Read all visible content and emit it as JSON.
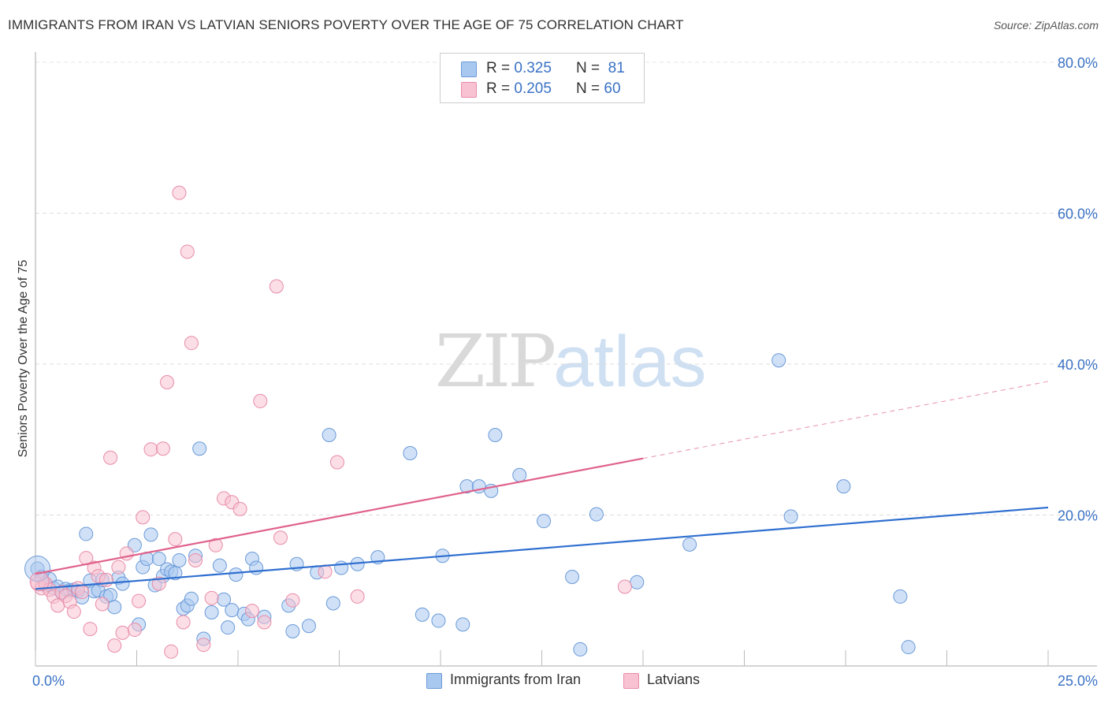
{
  "title": "IMMIGRANTS FROM IRAN VS LATVIAN SENIORS POVERTY OVER THE AGE OF 75 CORRELATION CHART",
  "source": "Source: ZipAtlas.com",
  "watermark": {
    "zip": "ZIP",
    "atlas": "atlas"
  },
  "legend": {
    "r_label": "R =",
    "n_label": "N =",
    "items": [
      {
        "r": "0.325",
        "n": "81",
        "color": "#a9c8f0",
        "border": "#6a9ad8"
      },
      {
        "r": "0.205",
        "n": "60",
        "color": "#f8c2d2",
        "border": "#e88ca8"
      }
    ]
  },
  "bottom_legend": [
    {
      "label": "Immigrants from Iran",
      "color": "#a9c8f0",
      "border": "#6a9ad8"
    },
    {
      "label": "Latvians",
      "color": "#f8c2d2",
      "border": "#e88ca8"
    }
  ],
  "chart_data": {
    "type": "scatter",
    "title": "IMMIGRANTS FROM IRAN VS LATVIAN SENIORS POVERTY OVER THE AGE OF 75 CORRELATION CHART",
    "xlabel": "",
    "ylabel": "Seniors Poverty Over the Age of 75",
    "xlim": [
      0,
      25
    ],
    "ylim": [
      0,
      80
    ],
    "x_tick_labels": [
      "0.0%",
      "25.0%"
    ],
    "y_ticks": [
      20,
      40,
      60,
      80
    ],
    "y_tick_labels": [
      "20.0%",
      "40.0%",
      "60.0%",
      "80.0%"
    ],
    "grid": true,
    "legend_position": "top-center",
    "series": [
      {
        "name": "Immigrants from Iran",
        "color": "#6a9ad8",
        "fill": "#a9c8f0",
        "trend": {
          "color": "#2f6fd0",
          "x": [
            0,
            25
          ],
          "y": [
            10.2,
            21.0
          ]
        },
        "points": [
          [
            0.05,
            12.9
          ],
          [
            0.15,
            11.8
          ],
          [
            0.25,
            10.7
          ],
          [
            0.35,
            11.5
          ],
          [
            0.45,
            10.3
          ],
          [
            0.55,
            10.5
          ],
          [
            0.65,
            9.7
          ],
          [
            0.75,
            10.2
          ],
          [
            0.85,
            10.0
          ],
          [
            0.95,
            10.1
          ],
          [
            1.05,
            9.9
          ],
          [
            1.15,
            9.1
          ],
          [
            1.25,
            17.5
          ],
          [
            1.35,
            11.3
          ],
          [
            1.45,
            9.9
          ],
          [
            1.55,
            10.0
          ],
          [
            1.65,
            11.4
          ],
          [
            1.75,
            9.2
          ],
          [
            1.85,
            9.4
          ],
          [
            1.95,
            7.8
          ],
          [
            2.05,
            11.7
          ],
          [
            2.15,
            10.9
          ],
          [
            2.45,
            16.0
          ],
          [
            2.55,
            5.5
          ],
          [
            2.65,
            13.1
          ],
          [
            2.75,
            14.2
          ],
          [
            2.85,
            17.4
          ],
          [
            2.95,
            10.7
          ],
          [
            3.05,
            14.2
          ],
          [
            3.15,
            11.9
          ],
          [
            3.25,
            12.8
          ],
          [
            3.35,
            12.5
          ],
          [
            3.45,
            12.3
          ],
          [
            3.55,
            14.0
          ],
          [
            3.65,
            7.6
          ],
          [
            3.75,
            8.0
          ],
          [
            3.85,
            8.9
          ],
          [
            3.95,
            14.6
          ],
          [
            4.05,
            28.8
          ],
          [
            4.15,
            3.6
          ],
          [
            4.35,
            7.1
          ],
          [
            4.55,
            13.3
          ],
          [
            4.65,
            8.8
          ],
          [
            4.75,
            5.1
          ],
          [
            4.85,
            7.4
          ],
          [
            4.95,
            12.1
          ],
          [
            5.15,
            6.9
          ],
          [
            5.25,
            6.2
          ],
          [
            5.35,
            14.2
          ],
          [
            5.45,
            13.0
          ],
          [
            5.65,
            6.5
          ],
          [
            6.25,
            8.0
          ],
          [
            6.35,
            4.6
          ],
          [
            6.45,
            13.5
          ],
          [
            6.75,
            5.3
          ],
          [
            6.95,
            12.4
          ],
          [
            7.25,
            30.6
          ],
          [
            7.35,
            8.3
          ],
          [
            7.55,
            13.0
          ],
          [
            7.95,
            13.5
          ],
          [
            8.45,
            14.4
          ],
          [
            9.25,
            28.2
          ],
          [
            9.55,
            6.8
          ],
          [
            9.95,
            6.0
          ],
          [
            10.05,
            14.6
          ],
          [
            10.55,
            5.5
          ],
          [
            10.65,
            23.8
          ],
          [
            10.95,
            23.8
          ],
          [
            11.25,
            23.2
          ],
          [
            11.35,
            30.6
          ],
          [
            11.95,
            25.3
          ],
          [
            12.55,
            19.2
          ],
          [
            13.25,
            11.8
          ],
          [
            13.45,
            2.2
          ],
          [
            13.85,
            20.1
          ],
          [
            14.85,
            11.1
          ],
          [
            16.15,
            16.1
          ],
          [
            18.35,
            40.5
          ],
          [
            18.65,
            19.8
          ],
          [
            19.95,
            23.8
          ],
          [
            21.35,
            9.2
          ],
          [
            21.55,
            2.5
          ]
        ]
      },
      {
        "name": "Latvians",
        "color": "#e88ca8",
        "fill": "#f8c2d2",
        "trend": {
          "color": "#e0628c",
          "x": [
            0,
            15
          ],
          "y": [
            12.2,
            27.5
          ]
        },
        "trend_extension": {
          "x": [
            15,
            25
          ],
          "y": [
            27.5,
            37.7
          ]
        },
        "points": [
          [
            0.05,
            10.9
          ],
          [
            0.15,
            10.3
          ],
          [
            0.25,
            10.9
          ],
          [
            0.35,
            10.1
          ],
          [
            0.45,
            9.2
          ],
          [
            0.55,
            8.0
          ],
          [
            0.65,
            9.8
          ],
          [
            0.75,
            9.3
          ],
          [
            0.85,
            8.5
          ],
          [
            0.95,
            7.2
          ],
          [
            1.05,
            10.3
          ],
          [
            1.15,
            9.8
          ],
          [
            1.25,
            14.3
          ],
          [
            1.35,
            4.9
          ],
          [
            1.45,
            13.0
          ],
          [
            1.55,
            11.9
          ],
          [
            1.65,
            8.2
          ],
          [
            1.75,
            11.4
          ],
          [
            1.85,
            27.6
          ],
          [
            1.95,
            2.7
          ],
          [
            2.05,
            13.1
          ],
          [
            2.15,
            4.4
          ],
          [
            2.25,
            14.9
          ],
          [
            2.45,
            4.8
          ],
          [
            2.55,
            8.6
          ],
          [
            2.65,
            19.7
          ],
          [
            2.85,
            28.7
          ],
          [
            3.05,
            10.9
          ],
          [
            3.15,
            28.8
          ],
          [
            3.25,
            37.6
          ],
          [
            3.35,
            1.9
          ],
          [
            3.45,
            16.8
          ],
          [
            3.55,
            62.7
          ],
          [
            3.65,
            5.8
          ],
          [
            3.75,
            54.9
          ],
          [
            3.85,
            42.8
          ],
          [
            3.95,
            14.0
          ],
          [
            4.15,
            2.8
          ],
          [
            4.35,
            9.0
          ],
          [
            4.45,
            16.0
          ],
          [
            4.65,
            22.2
          ],
          [
            4.85,
            21.7
          ],
          [
            5.05,
            20.8
          ],
          [
            5.35,
            7.3
          ],
          [
            5.55,
            35.1
          ],
          [
            5.65,
            5.8
          ],
          [
            5.95,
            50.3
          ],
          [
            6.05,
            17.0
          ],
          [
            6.35,
            8.7
          ],
          [
            7.15,
            12.5
          ],
          [
            7.45,
            27.0
          ],
          [
            7.95,
            9.2
          ],
          [
            14.55,
            10.5
          ]
        ]
      }
    ]
  }
}
